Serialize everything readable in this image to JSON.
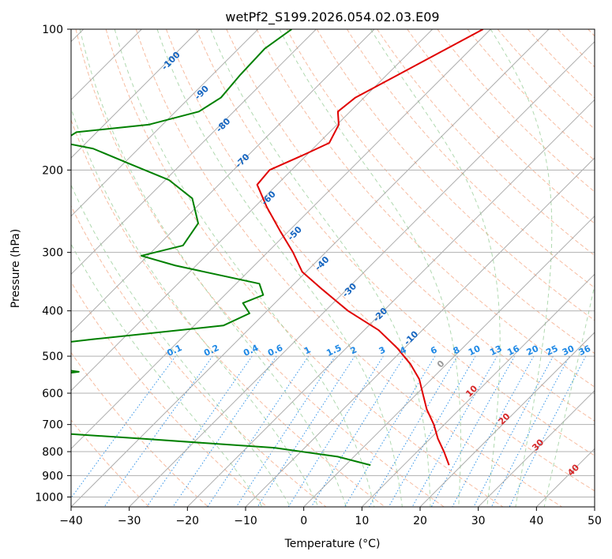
{
  "chart_data": {
    "type": "line",
    "title": "wetPf2_S199.2026.054.02.03.E09",
    "xlabel": "Temperature (°C)",
    "ylabel": "Pressure (hPa)",
    "xlim": [
      -40,
      50
    ],
    "ylim": [
      1050,
      100
    ],
    "x_ticks": [
      -40,
      -30,
      -20,
      -10,
      0,
      10,
      20,
      30,
      40,
      50
    ],
    "y_ticks": [
      100,
      200,
      300,
      400,
      500,
      600,
      700,
      800,
      900,
      1000
    ],
    "grid": true,
    "colors": {
      "temperature": "#e00000",
      "dewpoint": "#008000",
      "isotherm": "#999999",
      "dry_adiabat": "#f4a582",
      "moist_adiabat": "#8fc98f",
      "mixing_ratio": "#1e88e5",
      "lcl_line": "#d2b48c",
      "label_blue": "#1565c0",
      "label_red": "#d62728"
    },
    "series": [
      {
        "name": "Temperature",
        "points": [
          {
            "p": 100,
            "t": -51.3
          },
          {
            "p": 120,
            "t": -56.8
          },
          {
            "p": 140,
            "t": -61.5
          },
          {
            "p": 150,
            "t": -62.1
          },
          {
            "p": 160,
            "t": -59.7
          },
          {
            "p": 175,
            "t": -58.2
          },
          {
            "p": 185,
            "t": -60.4
          },
          {
            "p": 200,
            "t": -63.8
          },
          {
            "p": 215,
            "t": -63.4
          },
          {
            "p": 240,
            "t": -57.9
          },
          {
            "p": 270,
            "t": -51.5
          },
          {
            "p": 300,
            "t": -45.6
          },
          {
            "p": 330,
            "t": -40.7
          },
          {
            "p": 360,
            "t": -34.2
          },
          {
            "p": 400,
            "t": -26.1
          },
          {
            "p": 440,
            "t": -17.5
          },
          {
            "p": 480,
            "t": -11.3
          },
          {
            "p": 520,
            "t": -6.2
          },
          {
            "p": 560,
            "t": -2.1
          },
          {
            "p": 600,
            "t": 0.9
          },
          {
            "p": 650,
            "t": 4.4
          },
          {
            "p": 700,
            "t": 8.2
          },
          {
            "p": 750,
            "t": 11.3
          },
          {
            "p": 800,
            "t": 14.6
          },
          {
            "p": 855,
            "t": 17.8
          }
        ]
      },
      {
        "name": "Dewpoint",
        "points": [
          {
            "p": 100,
            "t": -84.2
          },
          {
            "p": 110,
            "t": -85.5
          },
          {
            "p": 125,
            "t": -85.2
          },
          {
            "p": 140,
            "t": -84.6
          },
          {
            "p": 150,
            "t": -86.0
          },
          {
            "p": 160,
            "t": -92.4
          },
          {
            "p": 166,
            "t": -103.5
          },
          {
            "p": 170,
            "t": -104.0
          },
          {
            "p": 175,
            "t": -103.8
          },
          {
            "p": 180,
            "t": -97.8
          },
          {
            "p": 195,
            "t": -88.3
          },
          {
            "p": 210,
            "t": -79.4
          },
          {
            "p": 230,
            "t": -72.2
          },
          {
            "p": 260,
            "t": -66.9
          },
          {
            "p": 290,
            "t": -65.7
          },
          {
            "p": 305,
            "t": -71.1
          },
          {
            "p": 320,
            "t": -63.6
          },
          {
            "p": 350,
            "t": -46.0
          },
          {
            "p": 370,
            "t": -43.4
          },
          {
            "p": 385,
            "t": -45.5
          },
          {
            "p": 405,
            "t": -42.6
          },
          {
            "p": 430,
            "t": -45.0
          },
          {
            "p": 460,
            "t": -65.0
          },
          {
            "p": 490,
            "t": -81.9
          },
          {
            "p": 505,
            "t": -84.6
          },
          {
            "p": 520,
            "t": -72.5
          },
          {
            "p": 540,
            "t": -61.9
          },
          {
            "p": 555,
            "t": -69.0
          },
          {
            "p": 575,
            "t": -82.7
          },
          {
            "p": 605,
            "t": -81.1
          },
          {
            "p": 640,
            "t": -81.8
          },
          {
            "p": 680,
            "t": -73.2
          },
          {
            "p": 720,
            "t": -63.2
          },
          {
            "p": 750,
            "t": -40.0
          },
          {
            "p": 785,
            "t": -15.2
          },
          {
            "p": 820,
            "t": -2.8
          },
          {
            "p": 855,
            "t": 4.3
          }
        ]
      }
    ],
    "dry_adiabats": [
      -30,
      -20,
      -10,
      0,
      10,
      20,
      30,
      40,
      50,
      60,
      70,
      80,
      90,
      100,
      110,
      120,
      130,
      140,
      150,
      160,
      170,
      180,
      190
    ],
    "moist_adiabats": [
      -10,
      -5,
      0,
      5,
      10,
      15,
      20,
      25,
      30,
      35,
      40
    ],
    "mixing_ratio_lines": [
      0.1,
      0.2,
      0.4,
      0.6,
      1,
      1.5,
      2,
      3,
      4,
      6,
      8,
      10,
      13,
      16,
      20,
      25,
      30,
      36
    ],
    "mixing_ratio_labels": [
      "0.1",
      "0.2",
      "0.4",
      "0.6",
      "1",
      "1.5",
      "2",
      "3",
      "4",
      "6",
      "8",
      "10",
      "13",
      "16",
      "20",
      "25",
      "30",
      "36"
    ],
    "isotherm_labels_blue": [
      {
        "text": "-100",
        "p": 118,
        "t": -22.5
      },
      {
        "text": "-90",
        "p": 138,
        "t": -17.2
      },
      {
        "text": "-80",
        "p": 162,
        "t": -13.5
      },
      {
        "text": "-70",
        "p": 193,
        "t": -10.2
      },
      {
        "text": "-60",
        "p": 232,
        "t": -5.7
      },
      {
        "text": "-50",
        "p": 276,
        "t": -1.2
      },
      {
        "text": "-40",
        "p": 320,
        "t": 3.5
      },
      {
        "text": "-30",
        "p": 365,
        "t": 8.2
      },
      {
        "text": "-20",
        "p": 412,
        "t": 13.5
      },
      {
        "text": "-10",
        "p": 462,
        "t": 18.8
      }
    ],
    "isotherm_labels_other": [
      {
        "text": "0",
        "p": 525,
        "t": 23.9,
        "color_key": "isotherm"
      },
      {
        "text": "10",
        "p": 600,
        "t": 29.2,
        "color_key": "label_red"
      },
      {
        "text": "20",
        "p": 688,
        "t": 34.8,
        "color_key": "label_red"
      },
      {
        "text": "30",
        "p": 782,
        "t": 40.6,
        "color_key": "label_red"
      },
      {
        "text": "40",
        "p": 885,
        "t": 46.7,
        "color_key": "label_red"
      }
    ]
  }
}
